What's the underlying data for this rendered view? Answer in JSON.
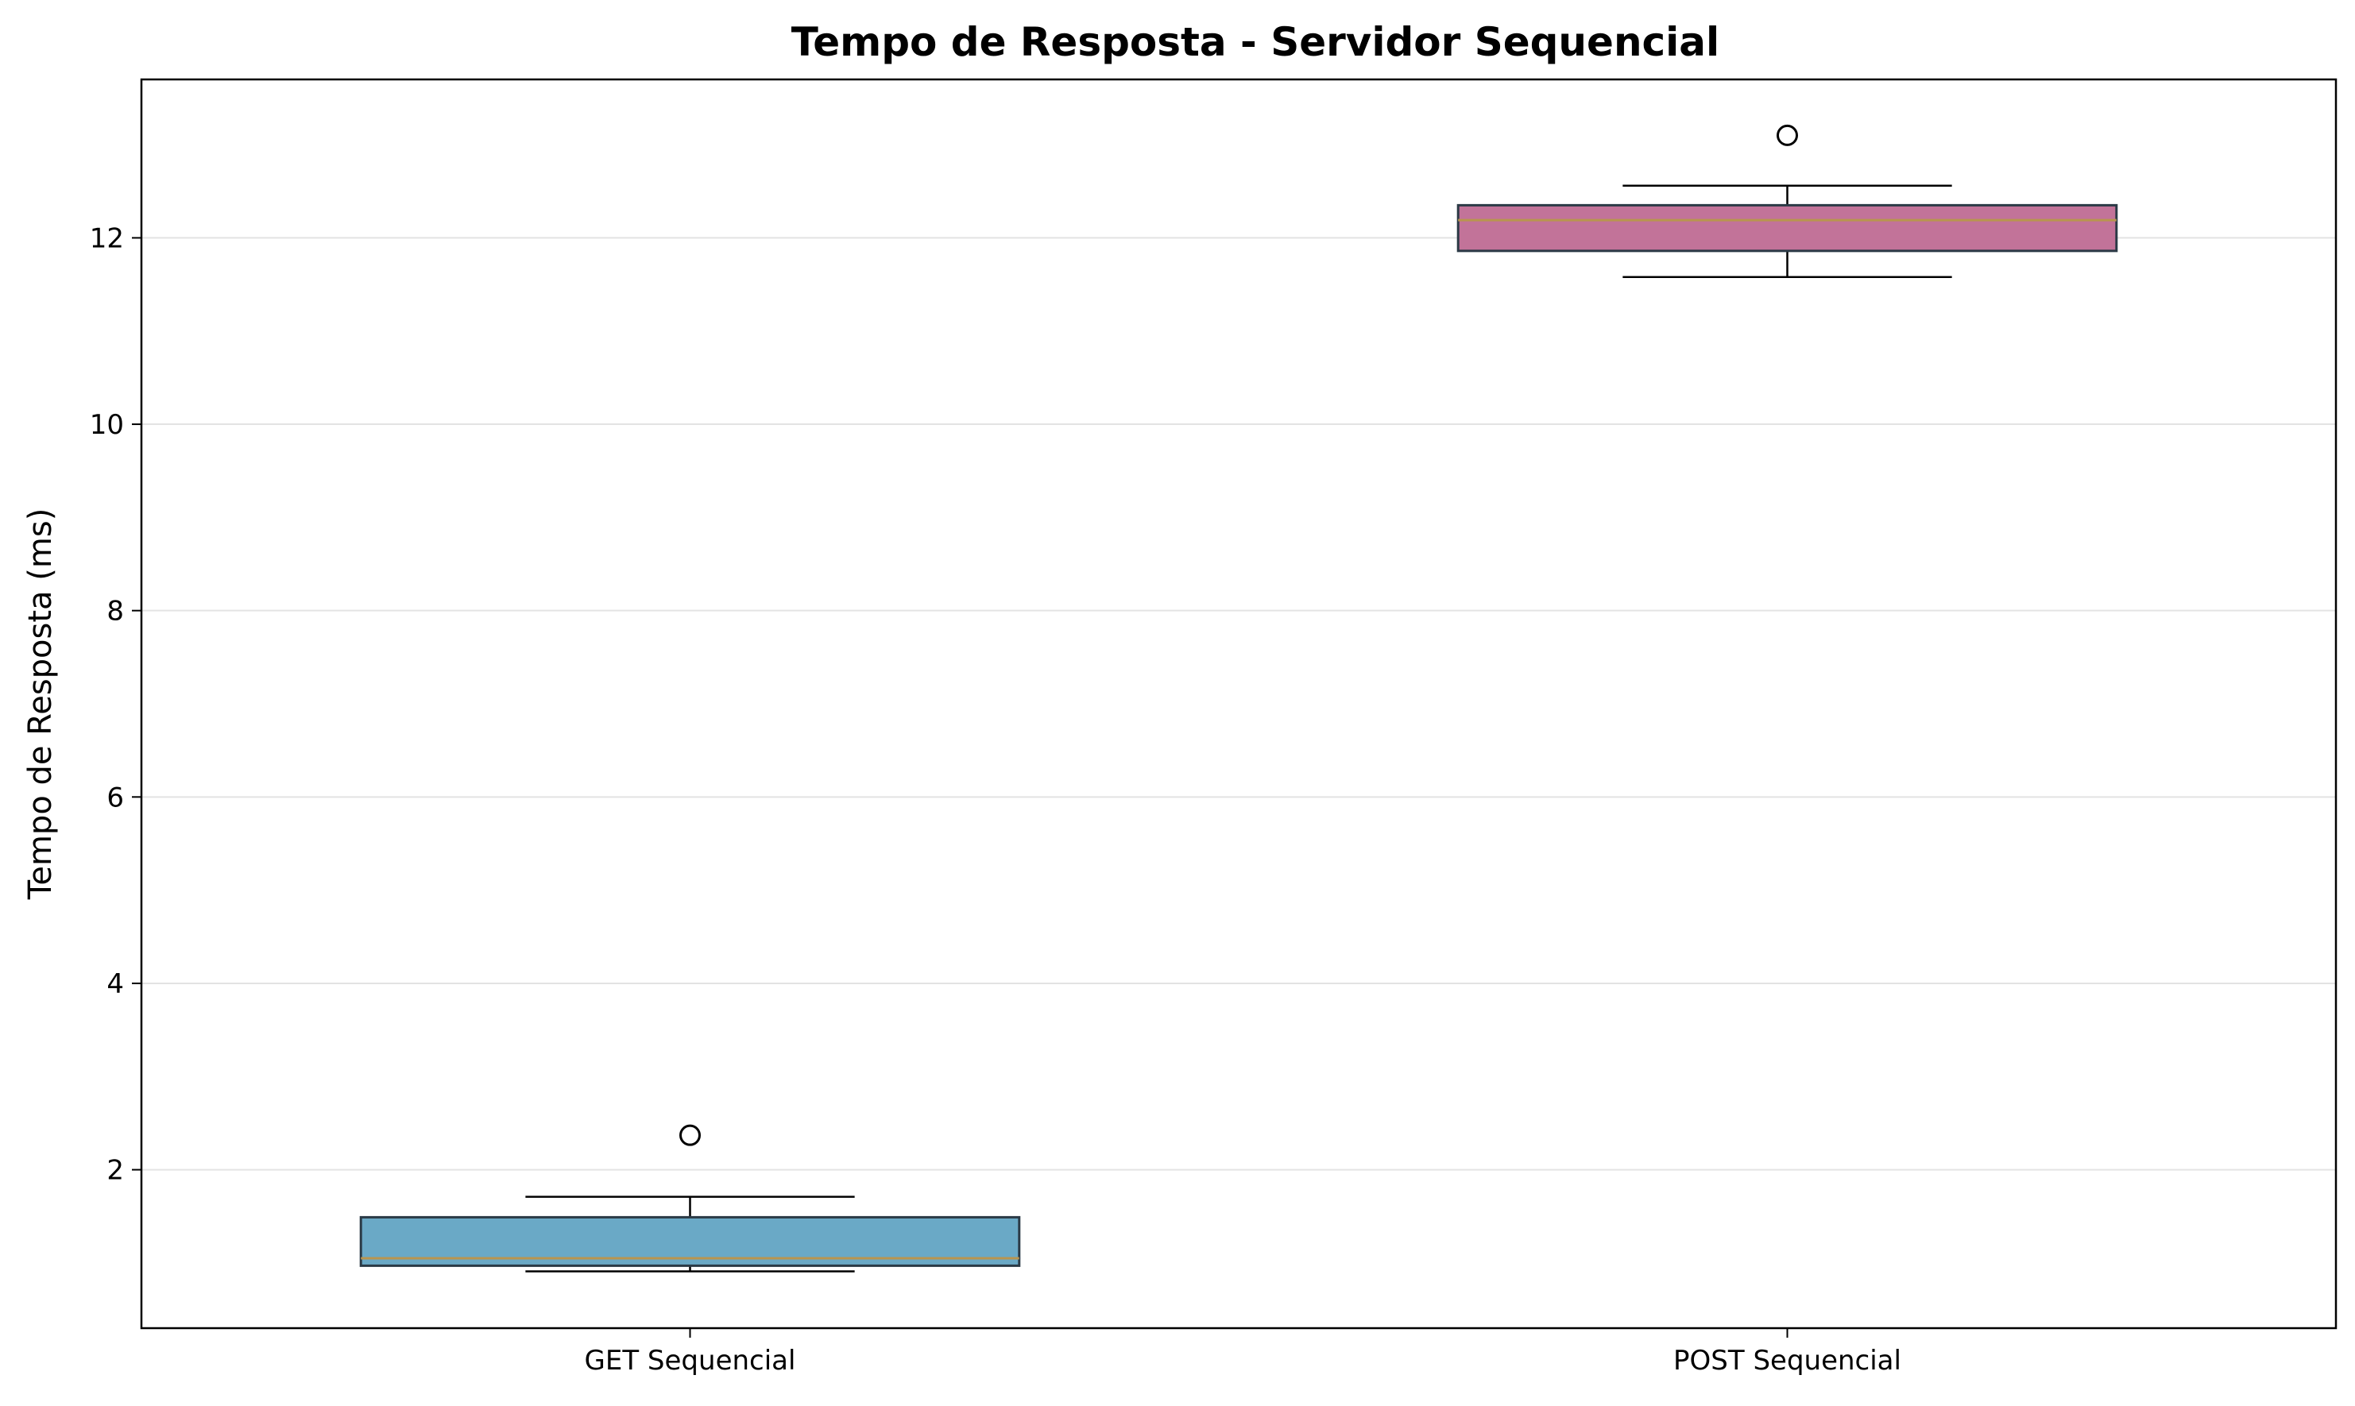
{
  "chart_data": {
    "type": "boxplot",
    "title": "Tempo de Resposta - Servidor Sequencial",
    "xlabel": "",
    "ylabel": "Tempo de Resposta (ms)",
    "ylim": [
      0.3,
      13.7
    ],
    "yticks": [
      2,
      4,
      6,
      8,
      10,
      12
    ],
    "grid": "y",
    "categories": [
      "GET Sequencial",
      "POST Sequencial"
    ],
    "series": [
      {
        "category": "GET Sequencial",
        "color": "#6aa9c6",
        "whisker_low": 0.91,
        "q1": 0.97,
        "median": 1.05,
        "q3": 1.49,
        "whisker_high": 1.71,
        "outliers": [
          2.37
        ]
      },
      {
        "category": "POST Sequencial",
        "color": "#c27399",
        "whisker_low": 11.58,
        "q1": 11.86,
        "median": 12.19,
        "q3": 12.35,
        "whisker_high": 12.56,
        "outliers": [
          13.1
        ]
      }
    ],
    "median_color": "#b8954e"
  }
}
